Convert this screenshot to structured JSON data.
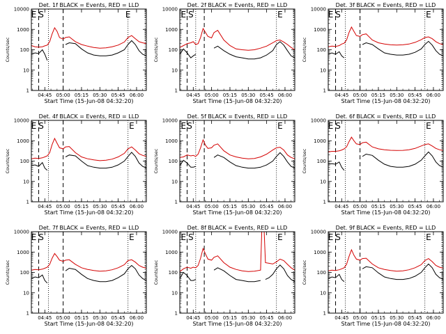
{
  "chart_data": {
    "type": "line",
    "y_scale": "log",
    "ylim": [
      1,
      10000
    ],
    "y_ticks": [
      "10000",
      "1000",
      "100",
      "10",
      "1"
    ],
    "x_ticks": [
      "04:45",
      "05:00",
      "05:15",
      "05:30",
      "05:45",
      "06:00"
    ],
    "x_range": [
      "04:34:00",
      "06:08:00"
    ],
    "ylabel": "Counts/sec",
    "xlabel": "Start Time (15-Jun-08 04:32:20)",
    "series_colors": {
      "Events": "#000000",
      "LLD": "#d40000"
    },
    "panels": [
      {
        "title": "Det. 1f BLACK = Events, RED = LLD",
        "markers": [
          {
            "label": "E",
            "time": "04:36"
          },
          {
            "label": "S",
            "time": "04:42"
          },
          {
            "label": "E",
            "time": "05:53"
          }
        ],
        "dashed_lines": [
          "04:40",
          "05:00"
        ],
        "dotted_lines": [
          "04:48",
          "05:53",
          "06:07"
        ],
        "x": [
          "04:34",
          "04:37",
          "04:40",
          "04:43",
          "04:45",
          "04:47",
          "04:49",
          "04:51",
          "04:53",
          "04:55",
          "04:57",
          "05:00",
          "05:02",
          "05:05",
          "05:10",
          "05:15",
          "05:20",
          "05:25",
          "05:30",
          "05:35",
          "05:40",
          "05:45",
          "05:50",
          "05:53",
          "05:56",
          "05:59",
          "06:02",
          "06:05",
          "06:08"
        ],
        "lld": [
          160,
          140,
          135,
          140,
          155,
          170,
          250,
          600,
          1200,
          800,
          400,
          330,
          400,
          430,
          250,
          180,
          150,
          130,
          120,
          125,
          140,
          170,
          240,
          400,
          500,
          350,
          250,
          220,
          200
        ],
        "events": [
          60,
          70,
          65,
          100,
          60,
          30,
          null,
          null,
          null,
          null,
          null,
          null,
          180,
          220,
          200,
          110,
          70,
          55,
          50,
          50,
          55,
          70,
          100,
          180,
          280,
          180,
          90,
          60,
          50
        ]
      },
      {
        "title": "Det. 2f BLACK = Events, RED = LLD",
        "markers": [
          {
            "label": "E",
            "time": "04:37"
          },
          {
            "label": "S",
            "time": "04:43"
          },
          {
            "label": "E",
            "time": "05:56"
          }
        ],
        "dashed_lines": [
          "04:40",
          "04:54"
        ],
        "dotted_lines": [
          "04:47",
          "05:53",
          "06:07"
        ],
        "x": [
          "04:34",
          "04:37",
          "04:40",
          "04:43",
          "04:45",
          "04:47",
          "04:49",
          "04:51",
          "04:53",
          "04:55",
          "04:57",
          "05:00",
          "05:02",
          "05:05",
          "05:10",
          "05:15",
          "05:20",
          "05:25",
          "05:30",
          "05:35",
          "05:40",
          "05:45",
          "05:50",
          "05:53",
          "05:56",
          "05:59",
          "06:02",
          "06:05",
          "06:08"
        ],
        "lld": [
          130,
          160,
          200,
          220,
          250,
          180,
          200,
          400,
          1100,
          700,
          450,
          380,
          700,
          900,
          300,
          160,
          110,
          100,
          95,
          100,
          120,
          150,
          220,
          280,
          300,
          240,
          180,
          130,
          100
        ],
        "events": [
          60,
          110,
          70,
          40,
          50,
          60,
          null,
          null,
          null,
          null,
          null,
          null,
          120,
          150,
          90,
          60,
          45,
          40,
          35,
          35,
          40,
          55,
          90,
          180,
          250,
          170,
          90,
          50,
          40
        ]
      },
      {
        "title": "Det. 3f BLACK = Events, RED = LLD",
        "markers": [
          {
            "label": "E",
            "time": "04:36"
          },
          {
            "label": "S",
            "time": "04:42"
          },
          {
            "label": "E",
            "time": "05:56"
          }
        ],
        "dashed_lines": [
          "04:40",
          "05:00"
        ],
        "dotted_lines": [
          "04:48",
          "05:53",
          "06:07"
        ],
        "x": [
          "04:34",
          "04:37",
          "04:40",
          "04:43",
          "04:45",
          "04:47",
          "04:49",
          "04:51",
          "04:53",
          "04:55",
          "04:57",
          "05:00",
          "05:02",
          "05:05",
          "05:10",
          "05:15",
          "05:20",
          "05:25",
          "05:30",
          "05:35",
          "05:40",
          "05:45",
          "05:50",
          "05:53",
          "05:56",
          "05:59",
          "06:02",
          "06:05",
          "06:08"
        ],
        "lld": [
          140,
          150,
          145,
          160,
          190,
          210,
          300,
          700,
          1300,
          800,
          500,
          450,
          550,
          600,
          300,
          220,
          190,
          175,
          170,
          175,
          190,
          230,
          310,
          400,
          430,
          350,
          250,
          200,
          180
        ],
        "events": [
          60,
          70,
          60,
          80,
          50,
          40,
          null,
          null,
          null,
          null,
          null,
          null,
          180,
          220,
          180,
          110,
          70,
          60,
          55,
          55,
          60,
          75,
          110,
          180,
          260,
          170,
          90,
          60,
          50
        ]
      },
      {
        "title": "Det. 4f BLACK = Events, RED = LLD",
        "markers": [
          {
            "label": "E",
            "time": "04:36"
          },
          {
            "label": "S",
            "time": "04:42"
          },
          {
            "label": "E",
            "time": "05:56"
          }
        ],
        "dashed_lines": [
          "04:40",
          "05:00"
        ],
        "dotted_lines": [
          "04:48",
          "05:53",
          "06:07"
        ],
        "x": [
          "04:34",
          "04:37",
          "04:40",
          "04:43",
          "04:45",
          "04:47",
          "04:49",
          "04:51",
          "04:53",
          "04:55",
          "04:57",
          "05:00",
          "05:02",
          "05:05",
          "05:10",
          "05:15",
          "05:20",
          "05:25",
          "05:30",
          "05:35",
          "05:40",
          "05:45",
          "05:50",
          "05:53",
          "05:56",
          "05:59",
          "06:02",
          "06:05",
          "06:08"
        ],
        "lld": [
          130,
          140,
          135,
          145,
          160,
          180,
          260,
          650,
          1300,
          750,
          450,
          400,
          500,
          520,
          260,
          160,
          130,
          115,
          105,
          110,
          125,
          160,
          240,
          400,
          500,
          350,
          230,
          190,
          170
        ],
        "events": [
          60,
          65,
          55,
          85,
          45,
          35,
          null,
          null,
          null,
          null,
          null,
          null,
          160,
          200,
          180,
          100,
          60,
          50,
          45,
          45,
          50,
          65,
          100,
          170,
          270,
          170,
          80,
          55,
          45
        ]
      },
      {
        "title": "Det. 5f BLACK = Events, RED = LLD",
        "markers": [
          {
            "label": "E",
            "time": "04:37"
          },
          {
            "label": "S",
            "time": "04:42"
          },
          {
            "label": "E",
            "time": "05:56"
          }
        ],
        "dashed_lines": [
          "04:40",
          "04:54"
        ],
        "dotted_lines": [
          "04:47",
          "05:53",
          "06:07"
        ],
        "x": [
          "04:34",
          "04:37",
          "04:40",
          "04:43",
          "04:45",
          "04:47",
          "04:49",
          "04:51",
          "04:53",
          "04:55",
          "04:57",
          "05:00",
          "05:02",
          "05:05",
          "05:10",
          "05:15",
          "05:20",
          "05:25",
          "05:30",
          "05:35",
          "05:40",
          "05:45",
          "05:50",
          "05:53",
          "05:56",
          "05:59",
          "06:02",
          "06:05",
          "06:08"
        ],
        "lld": [
          150,
          160,
          200,
          180,
          190,
          170,
          220,
          450,
          1100,
          600,
          420,
          450,
          600,
          700,
          320,
          200,
          160,
          140,
          130,
          135,
          160,
          220,
          350,
          450,
          480,
          350,
          200,
          150,
          130
        ],
        "events": [
          60,
          110,
          80,
          50,
          50,
          55,
          null,
          null,
          null,
          null,
          null,
          null,
          150,
          200,
          150,
          90,
          60,
          50,
          45,
          45,
          50,
          65,
          100,
          170,
          260,
          170,
          90,
          55,
          45
        ]
      },
      {
        "title": "Det. 6f BLACK = Events, RED = LLD",
        "markers": [
          {
            "label": "E",
            "time": "04:36"
          },
          {
            "label": "S",
            "time": "04:42"
          },
          {
            "label": "E",
            "time": "05:56"
          }
        ],
        "dashed_lines": [
          "04:40",
          "05:00"
        ],
        "dotted_lines": [
          "04:48",
          "05:53",
          "06:07"
        ],
        "x": [
          "04:34",
          "04:37",
          "04:40",
          "04:43",
          "04:45",
          "04:47",
          "04:49",
          "04:51",
          "04:53",
          "04:55",
          "04:57",
          "05:00",
          "05:02",
          "05:05",
          "05:10",
          "05:15",
          "05:20",
          "05:25",
          "05:30",
          "05:35",
          "05:40",
          "05:45",
          "05:50",
          "05:53",
          "05:56",
          "05:59",
          "06:02",
          "06:05",
          "06:08"
        ],
        "lld": [
          280,
          300,
          300,
          320,
          350,
          400,
          500,
          900,
          1500,
          1000,
          700,
          650,
          800,
          850,
          500,
          400,
          360,
          340,
          330,
          335,
          360,
          420,
          550,
          650,
          700,
          550,
          420,
          360,
          330
        ],
        "events": [
          70,
          75,
          70,
          90,
          50,
          35,
          null,
          null,
          null,
          null,
          null,
          null,
          170,
          220,
          190,
          110,
          70,
          55,
          50,
          50,
          55,
          70,
          110,
          180,
          280,
          180,
          90,
          60,
          50
        ]
      },
      {
        "title": "Det. 7f BLACK = Events, RED = LLD",
        "markers": [
          {
            "label": "E",
            "time": "04:36"
          },
          {
            "label": "S",
            "time": "04:42"
          },
          {
            "label": "E",
            "time": "05:56"
          }
        ],
        "dashed_lines": [
          "04:40",
          "05:00"
        ],
        "dotted_lines": [
          "04:48",
          "05:53",
          "06:07"
        ],
        "x": [
          "04:34",
          "04:37",
          "04:40",
          "04:43",
          "04:45",
          "04:47",
          "04:49",
          "04:51",
          "04:53",
          "04:55",
          "04:57",
          "05:00",
          "05:02",
          "05:05",
          "05:10",
          "05:15",
          "05:20",
          "05:25",
          "05:30",
          "05:35",
          "05:40",
          "05:45",
          "05:50",
          "05:53",
          "05:56",
          "05:59",
          "06:02",
          "06:05",
          "06:08"
        ],
        "lld": [
          130,
          140,
          135,
          145,
          160,
          180,
          250,
          500,
          850,
          600,
          400,
          350,
          400,
          420,
          250,
          170,
          140,
          125,
          115,
          120,
          135,
          170,
          240,
          380,
          420,
          320,
          220,
          180,
          160
        ],
        "events": [
          50,
          60,
          55,
          75,
          40,
          30,
          null,
          null,
          null,
          null,
          null,
          null,
          120,
          160,
          140,
          80,
          50,
          40,
          35,
          35,
          40,
          55,
          85,
          150,
          220,
          150,
          75,
          50,
          40
        ]
      },
      {
        "title": "Det. 8f BLACK = Events, RED = LLD",
        "markers": [
          {
            "label": "E",
            "time": "04:37"
          },
          {
            "label": "S",
            "time": "04:43"
          },
          {
            "label": "E",
            "time": "05:56"
          }
        ],
        "dashed_lines": [
          "04:40",
          "04:54"
        ],
        "dotted_lines": [
          "04:47",
          "05:53",
          "06:07"
        ],
        "x": [
          "04:34",
          "04:37",
          "04:40",
          "04:43",
          "04:45",
          "04:47",
          "04:49",
          "04:51",
          "04:53",
          "04:55",
          "04:57",
          "05:00",
          "05:02",
          "05:05",
          "05:10",
          "05:15",
          "05:20",
          "05:25",
          "05:30",
          "05:35",
          "05:40",
          "05:41",
          "05:42",
          "05:43",
          "05:44",
          "05:47",
          "05:50",
          "05:53",
          "05:56",
          "05:59",
          "06:02",
          "06:05",
          "06:08"
        ],
        "lld": [
          110,
          150,
          180,
          160,
          180,
          170,
          220,
          500,
          1500,
          800,
          450,
          400,
          550,
          650,
          300,
          180,
          140,
          120,
          110,
          115,
          130,
          10000,
          10000,
          10000,
          300,
          280,
          260,
          330,
          450,
          380,
          250,
          170,
          130
        ],
        "events": [
          50,
          100,
          70,
          40,
          40,
          45,
          null,
          null,
          null,
          null,
          null,
          null,
          130,
          170,
          120,
          70,
          45,
          40,
          35,
          35,
          40,
          null,
          null,
          null,
          45,
          55,
          80,
          150,
          230,
          150,
          70,
          45,
          35
        ]
      },
      {
        "title": "Det. 9f BLACK = Events, RED = LLD",
        "markers": [
          {
            "label": "E",
            "time": "04:36"
          },
          {
            "label": "S",
            "time": "04:42"
          },
          {
            "label": "E",
            "time": "05:56"
          }
        ],
        "dashed_lines": [
          "04:40",
          "05:00"
        ],
        "dotted_lines": [
          "04:48",
          "05:53",
          "06:07"
        ],
        "x": [
          "04:34",
          "04:37",
          "04:40",
          "04:43",
          "04:45",
          "04:47",
          "04:49",
          "04:51",
          "04:53",
          "04:55",
          "04:57",
          "05:00",
          "05:02",
          "05:05",
          "05:10",
          "05:15",
          "05:20",
          "05:25",
          "05:30",
          "05:35",
          "05:40",
          "05:45",
          "05:50",
          "05:53",
          "05:56",
          "05:59",
          "06:02",
          "06:05",
          "06:08"
        ],
        "lld": [
          120,
          130,
          125,
          135,
          150,
          170,
          250,
          600,
          1300,
          700,
          450,
          400,
          480,
          500,
          260,
          170,
          140,
          125,
          115,
          120,
          135,
          170,
          240,
          380,
          480,
          340,
          220,
          180,
          160
        ],
        "events": [
          50,
          60,
          55,
          80,
          45,
          35,
          null,
          null,
          null,
          null,
          null,
          null,
          150,
          190,
          170,
          95,
          60,
          50,
          45,
          45,
          50,
          65,
          100,
          170,
          260,
          170,
          80,
          55,
          45
        ]
      }
    ]
  }
}
